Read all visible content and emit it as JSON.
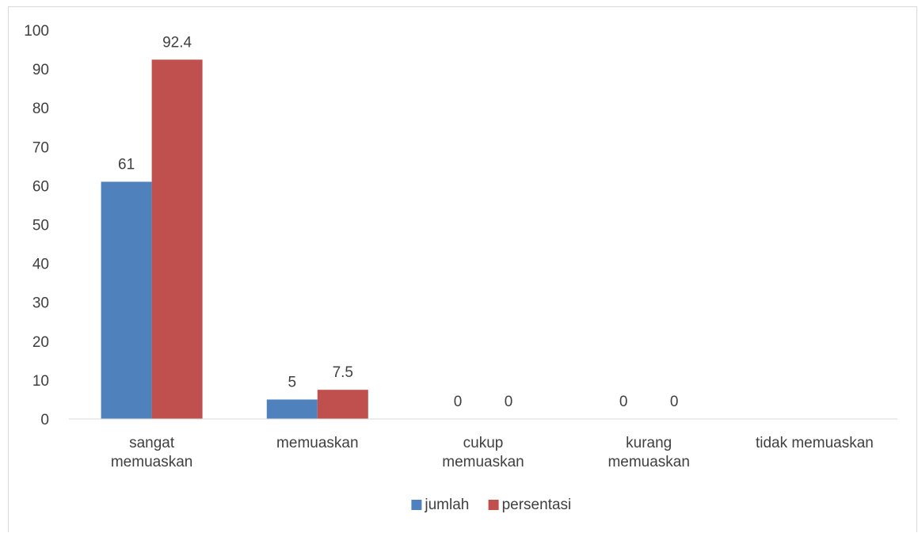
{
  "chart_data": {
    "type": "bar",
    "categories": [
      [
        "sangat",
        "memuaskan"
      ],
      [
        "memuaskan"
      ],
      [
        "cukup",
        "memuaskan"
      ],
      [
        "kurang",
        "memuaskan"
      ],
      [
        "tidak memuaskan"
      ]
    ],
    "series": [
      {
        "name": "jumlah",
        "values": [
          61,
          5,
          0,
          0,
          null
        ],
        "color": "#4f81bd"
      },
      {
        "name": "persentasi",
        "values": [
          92.4,
          7.5,
          0,
          0,
          null
        ],
        "color": "#c0504d"
      }
    ],
    "ylim": [
      0,
      100
    ],
    "yticks": [
      0,
      10,
      20,
      30,
      40,
      50,
      60,
      70,
      80,
      90,
      100
    ],
    "grid": false,
    "legend_position": "bottom"
  }
}
